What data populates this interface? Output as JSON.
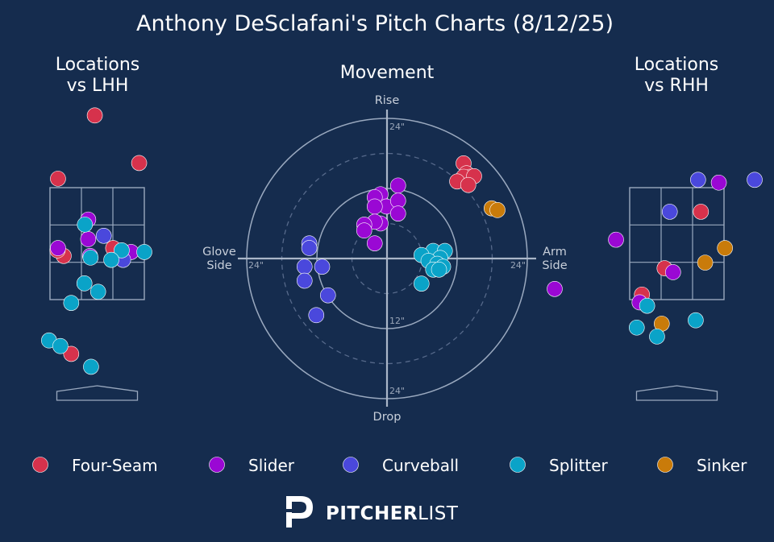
{
  "title": "Anthony DeSclafani's Pitch Charts (8/12/25)",
  "brand": {
    "bold": "PITCHER",
    "light": "LIST"
  },
  "colors": {
    "Four-Seam": "#d6324c",
    "Slider": "#9a08d4",
    "Curveball": "#4a48dc",
    "Splitter": "#0aa3c8",
    "Sinker": "#c97b0a",
    "background": "#152c4e"
  },
  "legend": [
    "Four-Seam",
    "Slider",
    "Curveball",
    "Splitter",
    "Sinker"
  ],
  "chart_data": [
    {
      "type": "scatter",
      "title": "Locations\nvs LHH",
      "note": "pitch locations in strike-zone units (x: -1 left edge, 1 right edge; y: -1 bottom, 1 top)",
      "points": [
        {
          "pitch": "Four-Seam",
          "x": -0.05,
          "y": 2.29
        },
        {
          "pitch": "Four-Seam",
          "x": 0.89,
          "y": 1.44
        },
        {
          "pitch": "Four-Seam",
          "x": -0.83,
          "y": 1.16
        },
        {
          "pitch": "Four-Seam",
          "x": 0.34,
          "y": -0.08
        },
        {
          "pitch": "Four-Seam",
          "x": -0.71,
          "y": -0.22
        },
        {
          "pitch": "Four-Seam",
          "x": -0.84,
          "y": -0.12
        },
        {
          "pitch": "Four-Seam",
          "x": -0.55,
          "y": -1.97
        },
        {
          "pitch": "Slider",
          "x": -0.19,
          "y": 0.43
        },
        {
          "pitch": "Slider",
          "x": -0.19,
          "y": 0.08
        },
        {
          "pitch": "Slider",
          "x": -0.83,
          "y": -0.08
        },
        {
          "pitch": "Slider",
          "x": -0.15,
          "y": -0.22
        },
        {
          "pitch": "Slider",
          "x": 0.72,
          "y": -0.15
        },
        {
          "pitch": "Curveball",
          "x": 0.14,
          "y": 0.14
        },
        {
          "pitch": "Curveball",
          "x": 0.55,
          "y": -0.29
        },
        {
          "pitch": "Splitter",
          "x": -0.26,
          "y": 0.34
        },
        {
          "pitch": "Splitter",
          "x": 0.52,
          "y": -0.12
        },
        {
          "pitch": "Splitter",
          "x": 1.0,
          "y": -0.15
        },
        {
          "pitch": "Splitter",
          "x": -0.14,
          "y": -0.25
        },
        {
          "pitch": "Splitter",
          "x": 0.3,
          "y": -0.29
        },
        {
          "pitch": "Splitter",
          "x": -0.27,
          "y": -0.71
        },
        {
          "pitch": "Splitter",
          "x": 0.02,
          "y": -0.86
        },
        {
          "pitch": "Splitter",
          "x": -0.55,
          "y": -1.06
        },
        {
          "pitch": "Splitter",
          "x": -1.02,
          "y": -1.73
        },
        {
          "pitch": "Splitter",
          "x": -0.78,
          "y": -1.83
        },
        {
          "pitch": "Splitter",
          "x": -0.13,
          "y": -2.2
        }
      ]
    },
    {
      "type": "scatter",
      "title": "Movement",
      "note": "polar movement plot in inches (x: + arm side, y: + rise)",
      "axis_labels": {
        "top": "Rise",
        "bottom": "Drop",
        "left": "Glove\nSide",
        "right": "Arm\nSide"
      },
      "rings": [
        12,
        24
      ],
      "ring_labels": {
        "outer_top": "24\"",
        "outer_left": "24\"",
        "outer_right": "24\"",
        "outer_bottom": "24\"",
        "inner_bottom": "12\""
      },
      "points": [
        {
          "pitch": "Four-Seam",
          "x": 13.1,
          "y": 16.3
        },
        {
          "pitch": "Four-Seam",
          "x": 13.6,
          "y": 14.6
        },
        {
          "pitch": "Four-Seam",
          "x": 14.2,
          "y": 14.0
        },
        {
          "pitch": "Four-Seam",
          "x": 13.1,
          "y": 14.0
        },
        {
          "pitch": "Four-Seam",
          "x": 14.9,
          "y": 14.1
        },
        {
          "pitch": "Four-Seam",
          "x": 12.0,
          "y": 13.2
        },
        {
          "pitch": "Four-Seam",
          "x": 13.9,
          "y": 12.6
        },
        {
          "pitch": "Sinker",
          "x": 17.9,
          "y": 8.6
        },
        {
          "pitch": "Sinker",
          "x": 18.9,
          "y": 8.3
        },
        {
          "pitch": "Slider",
          "x": 1.9,
          "y": 12.5
        },
        {
          "pitch": "Slider",
          "x": -1.1,
          "y": 11.0
        },
        {
          "pitch": "Slider",
          "x": -2.1,
          "y": 10.5
        },
        {
          "pitch": "Slider",
          "x": -0.1,
          "y": 8.9
        },
        {
          "pitch": "Slider",
          "x": 1.9,
          "y": 9.9
        },
        {
          "pitch": "Slider",
          "x": -2.1,
          "y": 8.9
        },
        {
          "pitch": "Slider",
          "x": 1.9,
          "y": 7.7
        },
        {
          "pitch": "Slider",
          "x": -1.1,
          "y": 6.0
        },
        {
          "pitch": "Slider",
          "x": -2.1,
          "y": 6.3
        },
        {
          "pitch": "Slider",
          "x": -3.9,
          "y": 5.8
        },
        {
          "pitch": "Slider",
          "x": -3.9,
          "y": 4.8
        },
        {
          "pitch": "Slider",
          "x": -2.1,
          "y": 2.6
        },
        {
          "pitch": "Curveball",
          "x": -13.3,
          "y": 2.6
        },
        {
          "pitch": "Curveball",
          "x": -13.3,
          "y": 1.8
        },
        {
          "pitch": "Curveball",
          "x": -14.1,
          "y": -1.4
        },
        {
          "pitch": "Curveball",
          "x": -11.1,
          "y": -1.4
        },
        {
          "pitch": "Curveball",
          "x": -14.1,
          "y": -3.8
        },
        {
          "pitch": "Curveball",
          "x": -10.1,
          "y": -6.3
        },
        {
          "pitch": "Curveball",
          "x": -12.1,
          "y": -9.7
        },
        {
          "pitch": "Splitter",
          "x": 7.9,
          "y": 1.3
        },
        {
          "pitch": "Splitter",
          "x": 9.9,
          "y": 1.3
        },
        {
          "pitch": "Splitter",
          "x": 5.9,
          "y": 0.6
        },
        {
          "pitch": "Splitter",
          "x": 9.1,
          "y": 0.1
        },
        {
          "pitch": "Splitter",
          "x": 7.1,
          "y": -0.4
        },
        {
          "pitch": "Splitter",
          "x": 8.6,
          "y": -0.9
        },
        {
          "pitch": "Splitter",
          "x": 9.6,
          "y": -1.4
        },
        {
          "pitch": "Splitter",
          "x": 7.9,
          "y": -1.9
        },
        {
          "pitch": "Splitter",
          "x": 8.9,
          "y": -1.9
        },
        {
          "pitch": "Splitter",
          "x": 5.9,
          "y": -4.3
        }
      ]
    },
    {
      "type": "scatter",
      "title": "Locations\nvs RHH",
      "note": "pitch locations in strike-zone units (x: -1 left edge, 1 right edge; y: -1 bottom, 1 top)",
      "points": [
        {
          "pitch": "Four-Seam",
          "x": 0.51,
          "y": 0.57
        },
        {
          "pitch": "Four-Seam",
          "x": -0.26,
          "y": -0.44
        },
        {
          "pitch": "Four-Seam",
          "x": -0.74,
          "y": -0.91
        },
        {
          "pitch": "Slider",
          "x": 0.89,
          "y": 1.09
        },
        {
          "pitch": "Slider",
          "x": -1.29,
          "y": 0.07
        },
        {
          "pitch": "Slider",
          "x": -0.08,
          "y": -0.51
        },
        {
          "pitch": "Slider",
          "x": -0.79,
          "y": -1.05
        },
        {
          "pitch": "Slider",
          "x": -2.59,
          "y": -0.81
        },
        {
          "pitch": "Curveball",
          "x": 0.45,
          "y": 1.14
        },
        {
          "pitch": "Curveball",
          "x": 1.65,
          "y": 1.14
        },
        {
          "pitch": "Curveball",
          "x": -0.15,
          "y": 0.57
        },
        {
          "pitch": "Sinker",
          "x": 1.02,
          "y": -0.08
        },
        {
          "pitch": "Sinker",
          "x": 0.6,
          "y": -0.34
        },
        {
          "pitch": "Sinker",
          "x": -0.32,
          "y": -1.43
        },
        {
          "pitch": "Splitter",
          "x": -0.63,
          "y": -1.11
        },
        {
          "pitch": "Splitter",
          "x": -0.85,
          "y": -1.5
        },
        {
          "pitch": "Splitter",
          "x": -0.42,
          "y": -1.66
        },
        {
          "pitch": "Splitter",
          "x": 0.4,
          "y": -1.37
        }
      ]
    }
  ]
}
